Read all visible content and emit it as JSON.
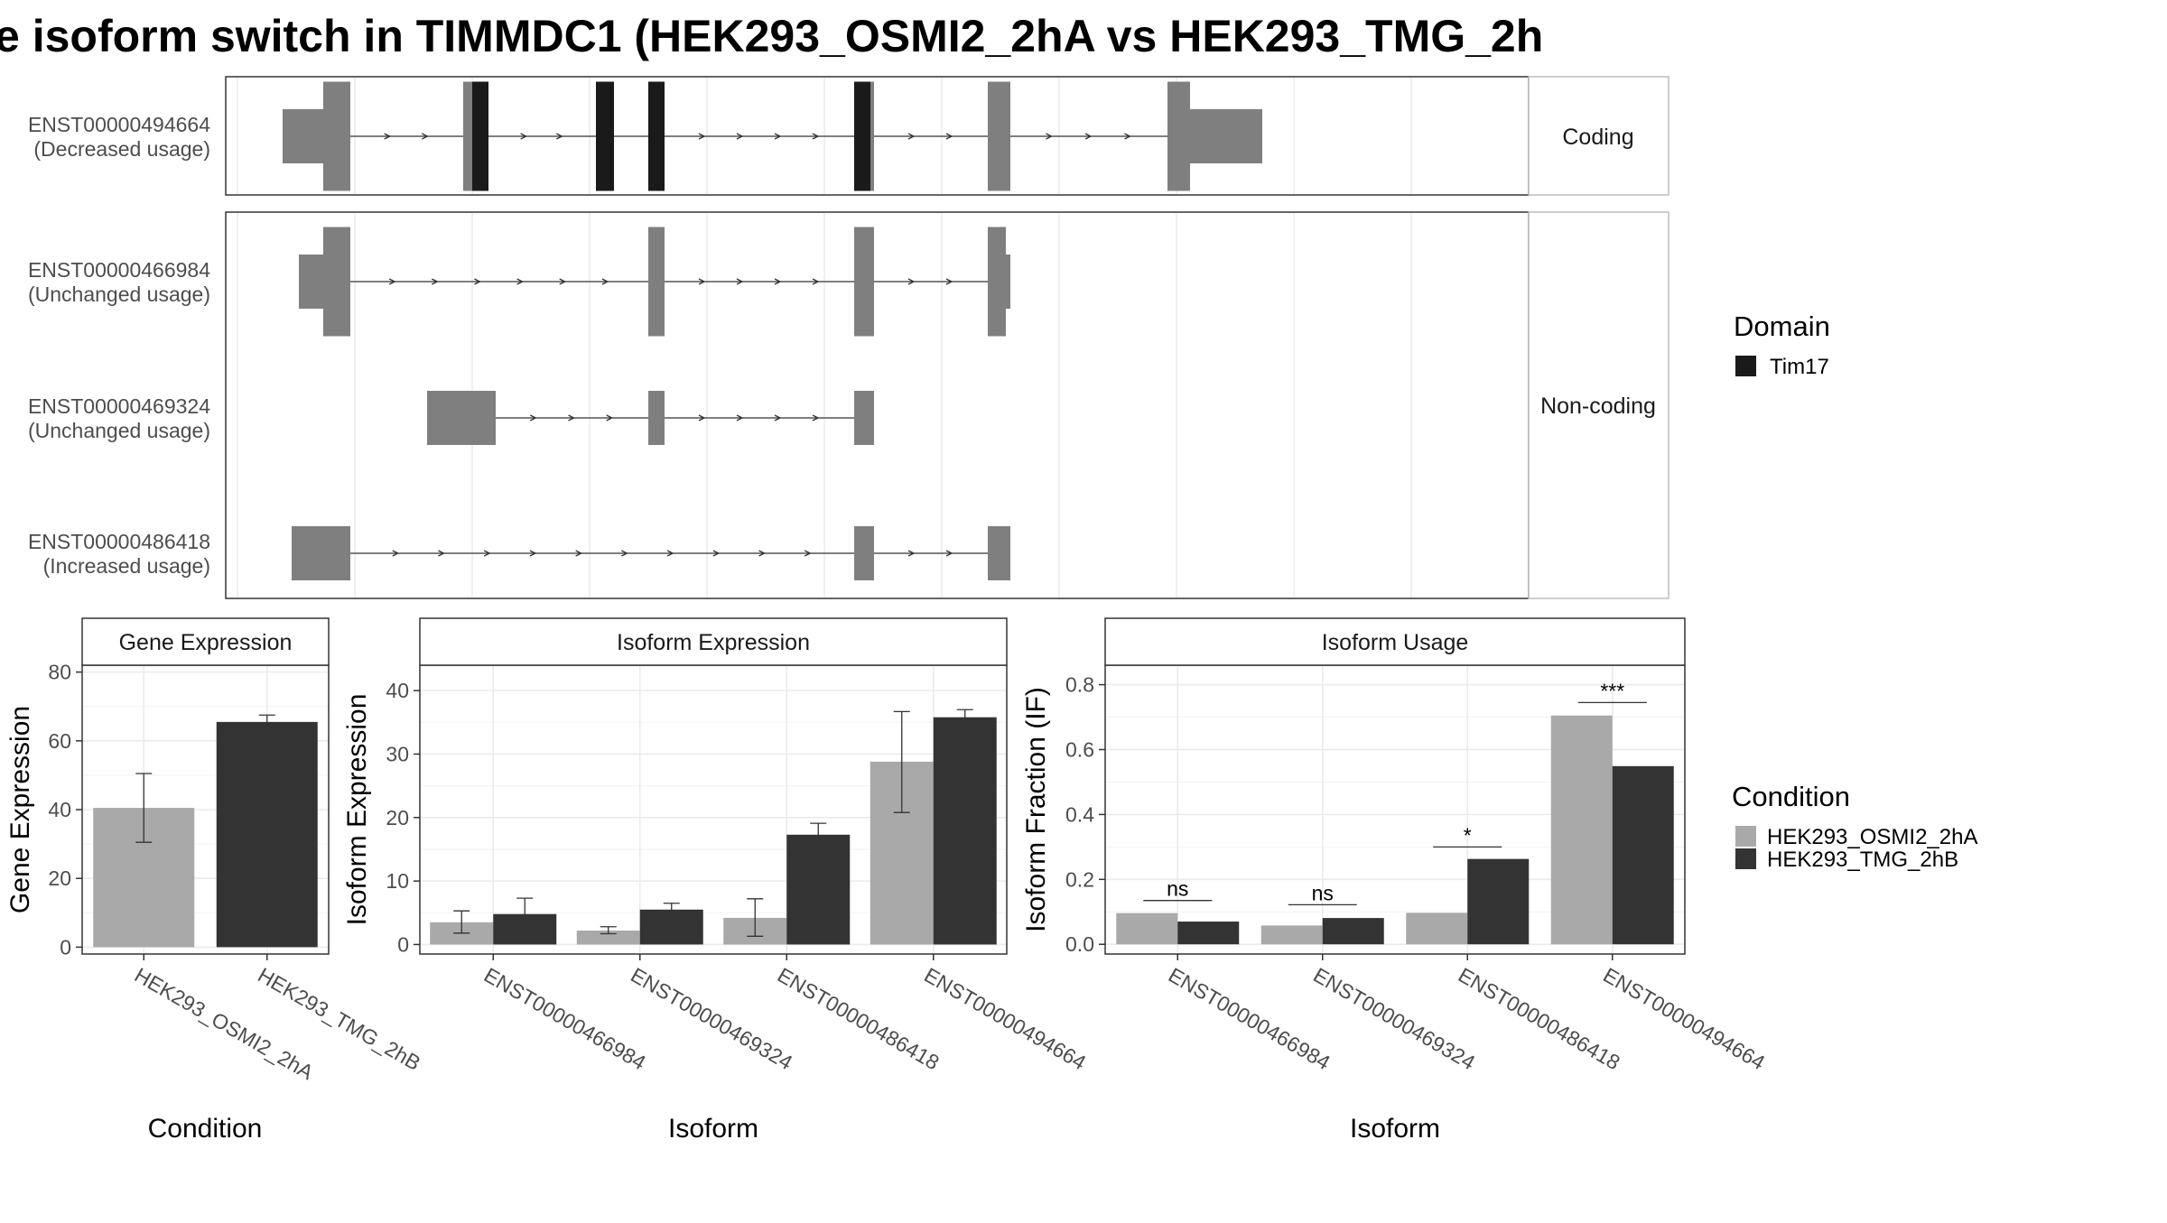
{
  "title": "e isoform switch in TIMMDC1 (HEK293_OSMI2_2hA vs HEK293_TMG_2h",
  "colors": {
    "exon": "#7f7f7f",
    "domain": "#1a1a1a",
    "cond_a": "#a9a9a9",
    "cond_b": "#333333",
    "grid": "#ebebeb",
    "strip_border": "#bdbdbd"
  },
  "facets": {
    "coding": "Coding",
    "noncoding": "Non-coding"
  },
  "legends": {
    "domain": {
      "title": "Domain",
      "items": [
        "Tim17"
      ]
    },
    "condition": {
      "title": "Condition",
      "items": [
        "HEK293_OSMI2_2hA",
        "HEK293_TMG_2hB"
      ]
    }
  },
  "chart_data": [
    {
      "type": "gene-structure",
      "facets": [
        "Coding",
        "Non-coding"
      ],
      "legend": "Domain",
      "transcripts": [
        {
          "id": "ENST00000494664",
          "usage": "(Decreased usage)",
          "facet": "Coding",
          "exons": [
            [
              0,
              45,
              "utr"
            ],
            [
              45,
              75,
              "cds"
            ],
            [
              200,
              210,
              "cds"
            ],
            [
              210,
              228,
              "domain"
            ],
            [
              347,
              367,
              "domain"
            ],
            [
              405,
              423,
              "domain"
            ],
            [
              633,
              651,
              "domain"
            ],
            [
              651,
              655,
              "cds"
            ],
            [
              781,
              806,
              "cds"
            ],
            [
              980,
              1005,
              "cds"
            ],
            [
              1005,
              1085,
              "utr"
            ]
          ]
        },
        {
          "id": "ENST00000466984",
          "usage": "(Unchanged usage)",
          "facet": "Non-coding",
          "exons": [
            [
              18,
              45,
              "utr"
            ],
            [
              45,
              75,
              "cds"
            ],
            [
              405,
              423,
              "cds"
            ],
            [
              633,
              655,
              "cds"
            ],
            [
              781,
              801,
              "cds"
            ],
            [
              801,
              806,
              "utr"
            ]
          ]
        },
        {
          "id": "ENST00000469324",
          "usage": "(Unchanged usage)",
          "facet": "Non-coding",
          "exons": [
            [
              160,
              236,
              "utr"
            ],
            [
              405,
              423,
              "utr"
            ],
            [
              633,
              655,
              "utr"
            ]
          ]
        },
        {
          "id": "ENST00000486418",
          "usage": "(Increased usage)",
          "facet": "Non-coding",
          "exons": [
            [
              10,
              75,
              "utr"
            ],
            [
              633,
              655,
              "utr"
            ],
            [
              781,
              806,
              "utr"
            ]
          ]
        }
      ]
    },
    {
      "type": "bar",
      "title": "Gene Expression",
      "xlabel": "Condition",
      "ylabel": "Gene Expression",
      "ylim": [
        -2,
        82
      ],
      "yticks": [
        0,
        20,
        40,
        60,
        80
      ],
      "categories": [
        "HEK293_OSMI2_2hA",
        "HEK293_TMG_2hB"
      ],
      "series": [
        {
          "name": "HEK293_OSMI2_2hA",
          "values": [
            40.5,
            null
          ],
          "err": [
            [
              30.5,
              50.5
            ],
            null
          ]
        },
        {
          "name": "HEK293_TMG_2hB",
          "values": [
            null,
            65.5
          ],
          "err": [
            null,
            [
              63.5,
              67.5
            ]
          ]
        }
      ]
    },
    {
      "type": "bar",
      "title": "Isoform Expression",
      "xlabel": "Isoform",
      "ylabel": "Isoform Expression",
      "ylim": [
        -1.5,
        44
      ],
      "yticks": [
        0,
        10,
        20,
        30,
        40
      ],
      "categories": [
        "ENST00000466984",
        "ENST00000469324",
        "ENST00000486418",
        "ENST00000494664"
      ],
      "series": [
        {
          "name": "HEK293_OSMI2_2hA",
          "values": [
            3.5,
            2.2,
            4.2,
            28.8
          ],
          "err": [
            [
              1.8,
              5.3
            ],
            [
              1.7,
              2.8
            ],
            [
              1.3,
              7.2
            ],
            [
              20.8,
              36.7
            ]
          ]
        },
        {
          "name": "HEK293_TMG_2hB",
          "values": [
            4.8,
            5.5,
            17.3,
            35.8
          ],
          "err": [
            [
              2.3,
              7.3
            ],
            [
              4.5,
              6.5
            ],
            [
              15.5,
              19.1
            ],
            [
              34.7,
              37.0
            ]
          ]
        }
      ]
    },
    {
      "type": "bar",
      "title": "Isoform Usage",
      "xlabel": "Isoform",
      "ylabel": "Isoform Fraction (IF)",
      "ylim": [
        -0.03,
        0.86
      ],
      "yticks": [
        0.0,
        0.2,
        0.4,
        0.6,
        0.8
      ],
      "ytick_labels": [
        "0.0",
        "0.2",
        "0.4",
        "0.6",
        "0.8"
      ],
      "categories": [
        "ENST00000466984",
        "ENST00000469324",
        "ENST00000486418",
        "ENST00000494664"
      ],
      "series": [
        {
          "name": "HEK293_OSMI2_2hA",
          "values": [
            0.096,
            0.058,
            0.097,
            0.705
          ]
        },
        {
          "name": "HEK293_TMG_2hB",
          "values": [
            0.07,
            0.081,
            0.263,
            0.549
          ]
        }
      ],
      "significance": [
        {
          "label": "ns",
          "y": 0.135
        },
        {
          "label": "ns",
          "y": 0.122
        },
        {
          "label": "*",
          "y": 0.3
        },
        {
          "label": "***",
          "y": 0.745
        }
      ]
    }
  ]
}
